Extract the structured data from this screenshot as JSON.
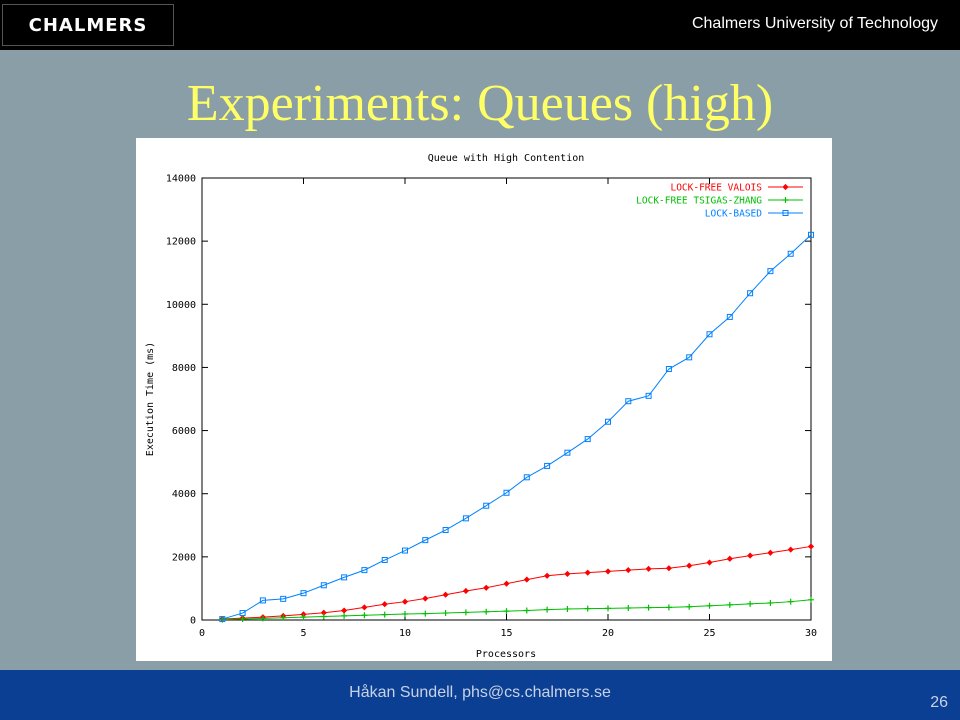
{
  "header": {
    "logo_text": "CHALMERS",
    "university": "Chalmers University of Technology"
  },
  "slide": {
    "title": "Experiments: Queues (high)"
  },
  "footer": {
    "author": "Håkan Sundell, phs@cs.chalmers.se",
    "page_number": "26"
  },
  "colors": {
    "background": "#8a9ea8",
    "title": "#ffff66",
    "footer_bar": "#0a3f93"
  },
  "chart_data": {
    "type": "line",
    "title": "Queue with High Contention",
    "xlabel": "Processors",
    "ylabel": "Execution Time (ms)",
    "xlim": [
      0,
      30
    ],
    "ylim": [
      0,
      14000
    ],
    "xticks": [
      0,
      5,
      10,
      15,
      20,
      25,
      30
    ],
    "yticks": [
      0,
      2000,
      4000,
      6000,
      8000,
      10000,
      12000,
      14000
    ],
    "grid": false,
    "legend_position": "top-right",
    "x": [
      1,
      2,
      3,
      4,
      5,
      6,
      7,
      8,
      9,
      10,
      11,
      12,
      13,
      14,
      15,
      16,
      17,
      18,
      19,
      20,
      21,
      22,
      23,
      24,
      25,
      26,
      27,
      28,
      29,
      30
    ],
    "series": [
      {
        "name": "LOCK-FREE VALOIS",
        "color": "#ff0000",
        "marker": "diamond",
        "values": [
          30,
          60,
          90,
          130,
          180,
          230,
          300,
          400,
          500,
          580,
          680,
          800,
          920,
          1020,
          1150,
          1280,
          1400,
          1460,
          1500,
          1540,
          1580,
          1620,
          1640,
          1720,
          1820,
          1940,
          2040,
          2130,
          2230,
          2330
        ]
      },
      {
        "name": "LOCK-FREE TSIGAS-ZHANG",
        "color": "#00c000",
        "marker": "plus",
        "values": [
          10,
          30,
          50,
          70,
          90,
          110,
          130,
          150,
          170,
          190,
          200,
          220,
          240,
          260,
          280,
          300,
          330,
          350,
          360,
          370,
          380,
          390,
          400,
          420,
          450,
          480,
          510,
          540,
          580,
          640
        ]
      },
      {
        "name": "LOCK-BASED",
        "color": "#0080ff",
        "marker": "square",
        "values": [
          30,
          220,
          620,
          670,
          850,
          1100,
          1350,
          1580,
          1900,
          2200,
          2530,
          2850,
          3220,
          3620,
          4030,
          4520,
          4880,
          5300,
          5730,
          6280,
          6930,
          7100,
          7950,
          8320,
          9050,
          9600,
          10350,
          11050,
          11600,
          12200
        ]
      }
    ]
  }
}
